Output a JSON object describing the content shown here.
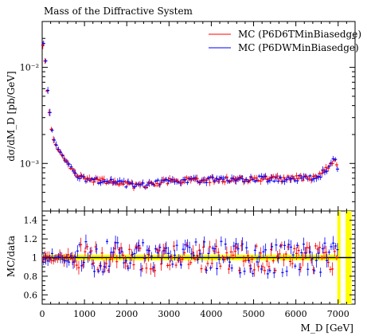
{
  "chart_data": {
    "type": "scatter",
    "title": "Mass of the Diffractive System",
    "xlabel": "M_D [GeV]",
    "ylabel": "dσ/dM_D [pb/GeV]",
    "ratio_ylabel": "MC/data",
    "xlim": [
      0,
      7400
    ],
    "ylim_log": [
      0.00032,
      0.03
    ],
    "ratio_ylim": [
      0.5,
      1.5
    ],
    "x_ticks": [
      "0",
      "1000",
      "2000",
      "3000",
      "4000",
      "5000",
      "6000",
      "7000"
    ],
    "y_major_ticks": [
      "10⁻³",
      "10⁻²"
    ],
    "ratio_ticks": [
      "0.6",
      "0.8",
      "1",
      "1.2",
      "1.4"
    ],
    "legend_position": "top-right",
    "series": [
      {
        "name": "MC (P6D6TMinBiasedge)",
        "color": "#ff0000"
      },
      {
        "name": "MC (P6DWMinBiasedge)",
        "color": "#0000ff"
      }
    ],
    "data_band_color": "#ffff00",
    "anchor_points": {
      "x": [
        50,
        100,
        150,
        200,
        250,
        300,
        400,
        500,
        600,
        700,
        800,
        900,
        1000,
        1500,
        2000,
        2300,
        3000,
        4000,
        5000,
        6000,
        6500,
        6700,
        6900,
        7000
      ],
      "y": [
        0.0175,
        0.0075,
        0.0042,
        0.0026,
        0.0019,
        0.0016,
        0.00135,
        0.00115,
        0.001,
        0.00088,
        0.00078,
        0.00072,
        0.00068,
        0.00065,
        0.00061,
        0.00058,
        0.00066,
        0.00068,
        0.00069,
        0.0007,
        0.00073,
        0.00085,
        0.0011,
        0.00085
      ]
    }
  }
}
